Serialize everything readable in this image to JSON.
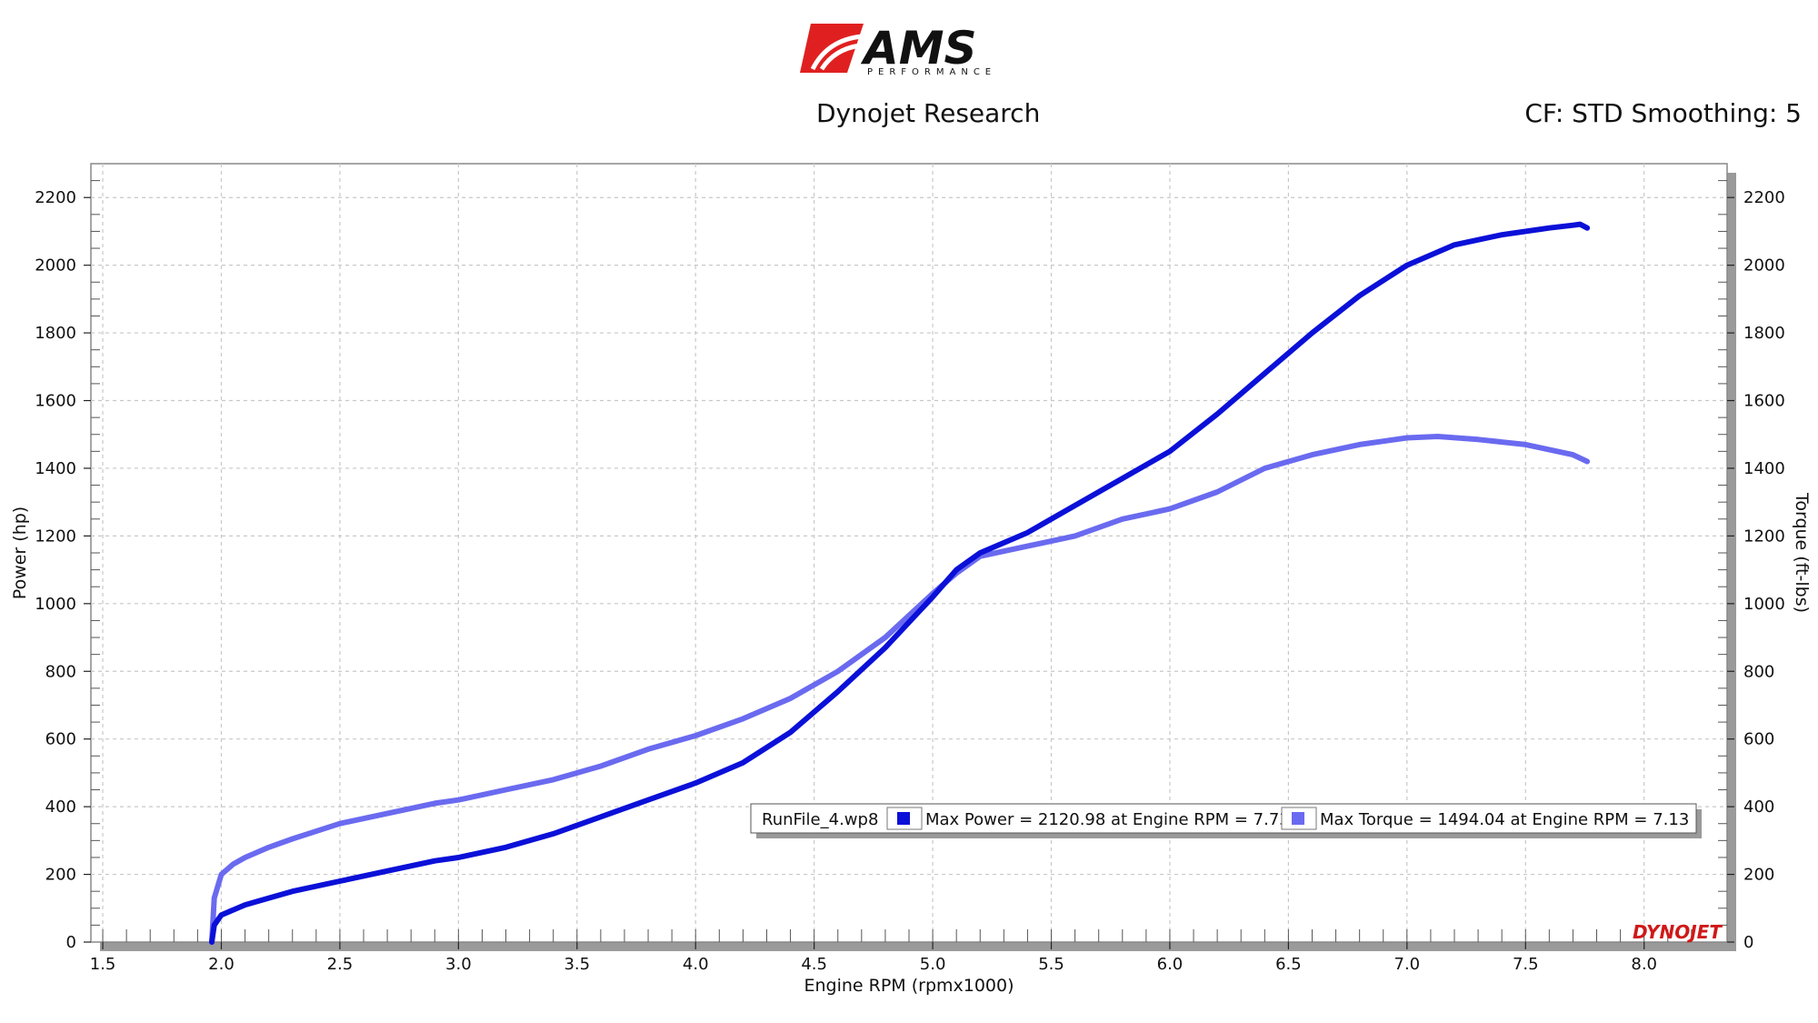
{
  "header": {
    "brand": "AMS",
    "brand_sub": "PERFORMANCE",
    "title": "Dynojet Research",
    "right_text": "CF: STD Smoothing: 5"
  },
  "colors": {
    "power": "#0b10d8",
    "torque": "#6a6af0",
    "logo_red": "#e02020",
    "grid": "#c8c8c8"
  },
  "chart_data": {
    "type": "line",
    "title": "Dynojet Research",
    "xlabel": "Engine RPM (rpmx1000)",
    "ylabel": "Power (hp)",
    "y2label": "Torque (ft-lbs)",
    "xlim": [
      1.45,
      8.35
    ],
    "ylim": [
      0,
      2300
    ],
    "y2lim": [
      0,
      2300
    ],
    "xticks": [
      1.5,
      2.0,
      2.5,
      3.0,
      3.5,
      4.0,
      4.5,
      5.0,
      5.5,
      6.0,
      6.5,
      7.0,
      7.5,
      8.0
    ],
    "yticks": [
      0,
      200,
      400,
      600,
      800,
      1000,
      1200,
      1400,
      1600,
      1800,
      2000,
      2200
    ],
    "grid": true,
    "series": [
      {
        "name": "Power",
        "axis": "left",
        "x": [
          1.96,
          1.97,
          2.0,
          2.1,
          2.2,
          2.3,
          2.5,
          2.7,
          2.9,
          3.0,
          3.2,
          3.4,
          3.6,
          3.8,
          4.0,
          4.2,
          4.4,
          4.6,
          4.8,
          5.0,
          5.1,
          5.2,
          5.4,
          5.6,
          5.8,
          6.0,
          6.2,
          6.4,
          6.6,
          6.8,
          7.0,
          7.2,
          7.4,
          7.6,
          7.7,
          7.73,
          7.76
        ],
        "y": [
          0,
          50,
          80,
          110,
          130,
          150,
          180,
          210,
          240,
          250,
          280,
          320,
          370,
          420,
          470,
          530,
          620,
          740,
          870,
          1020,
          1100,
          1150,
          1210,
          1290,
          1370,
          1450,
          1560,
          1680,
          1800,
          1910,
          2000,
          2060,
          2090,
          2110,
          2118,
          2120.98,
          2110
        ]
      },
      {
        "name": "Torque",
        "axis": "right",
        "x": [
          1.96,
          1.97,
          2.0,
          2.05,
          2.1,
          2.2,
          2.3,
          2.5,
          2.7,
          2.9,
          3.0,
          3.2,
          3.4,
          3.6,
          3.8,
          4.0,
          4.2,
          4.4,
          4.6,
          4.8,
          5.0,
          5.1,
          5.2,
          5.4,
          5.6,
          5.8,
          6.0,
          6.2,
          6.4,
          6.6,
          6.8,
          7.0,
          7.13,
          7.3,
          7.5,
          7.7,
          7.76
        ],
        "y": [
          0,
          130,
          200,
          230,
          250,
          280,
          305,
          350,
          380,
          410,
          420,
          450,
          480,
          520,
          570,
          610,
          660,
          720,
          800,
          900,
          1030,
          1090,
          1140,
          1170,
          1200,
          1250,
          1280,
          1330,
          1400,
          1440,
          1470,
          1490,
          1494.04,
          1485,
          1470,
          1440,
          1420
        ]
      }
    ],
    "legend": {
      "position": "bottom-right",
      "run_file": "RunFile_4.wp8",
      "entries": [
        "Max Power = 2120.98 at Engine RPM = 7.73",
        "Max Torque = 1494.04 at Engine RPM = 7.13"
      ]
    },
    "watermark": "DYNOJET"
  }
}
